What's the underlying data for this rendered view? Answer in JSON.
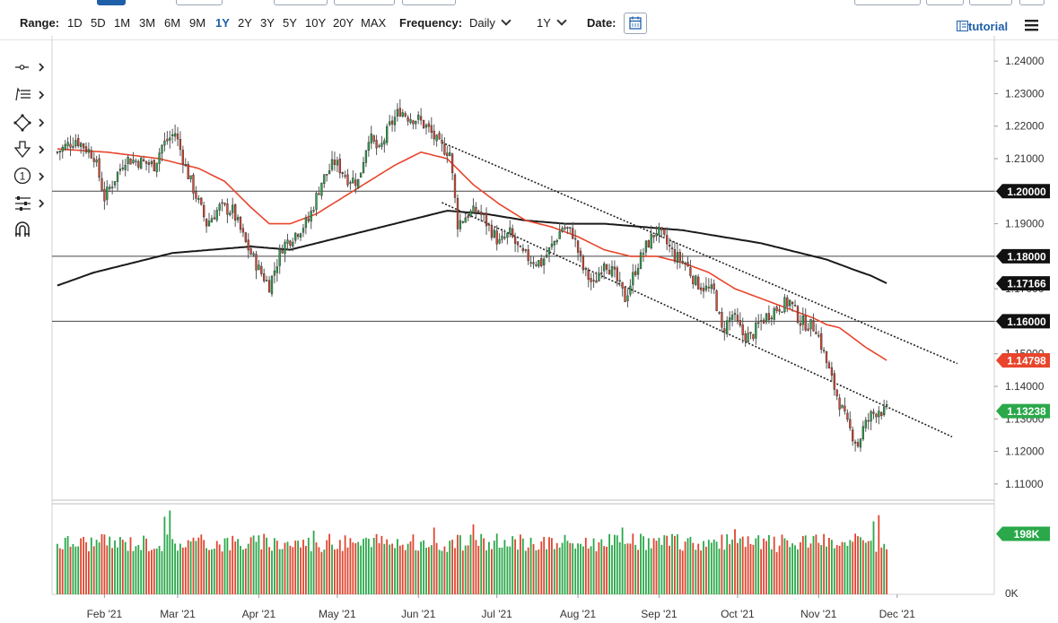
{
  "toolbar": {
    "range_label": "Range:",
    "ranges": [
      "1D",
      "5D",
      "1M",
      "3M",
      "6M",
      "9M",
      "1Y",
      "2Y",
      "3Y",
      "5Y",
      "10Y",
      "20Y",
      "MAX"
    ],
    "selected_range": "1Y",
    "frequency_label": "Frequency:",
    "frequency_value": "Daily",
    "period_value": "1Y",
    "date_label": "Date:",
    "tutorial_label": "tutorial"
  },
  "drawing_tools": [
    "crosshair-icon",
    "indicator-list-icon",
    "shape-icon",
    "arrow-down-icon",
    "annotation-icon",
    "settings-sliders-icon",
    "magnet-icon"
  ],
  "drawing_tool_labels": {
    "annotation": "1"
  },
  "chart_data": {
    "type": "candlestick",
    "instrument_colors": {
      "up": "#2aa84a",
      "down": "#e0452f",
      "ma_fast": "#e8452c",
      "ma_slow": "#1a1a1a"
    },
    "price_axis": {
      "range": [
        1.105,
        1.245
      ],
      "ticks": [
        "1.24000",
        "1.23000",
        "1.22000",
        "1.21000",
        "1.20000",
        "1.19000",
        "1.18000",
        "1.17000",
        "1.16000",
        "1.15000",
        "1.14000",
        "1.13000",
        "1.12000",
        "1.11000"
      ]
    },
    "x_axis": {
      "labels": [
        "Feb '21",
        "Mar '21",
        "Apr '21",
        "May '21",
        "Jun '21",
        "Jul '21",
        "Aug '21",
        "Sep '21",
        "Oct '21",
        "Nov '21",
        "Dec '21"
      ],
      "label_days": [
        19,
        47,
        78,
        108,
        139,
        169,
        200,
        231,
        261,
        292,
        322
      ]
    },
    "horizontal_levels": [
      1.2,
      1.18,
      1.16
    ],
    "price_labels": [
      {
        "text": "1.20000",
        "value": 1.2,
        "color": "#111111"
      },
      {
        "text": "1.18000",
        "value": 1.18,
        "color": "#111111"
      },
      {
        "text": "1.17166",
        "value": 1.17166,
        "color": "#111111"
      },
      {
        "text": "1.16000",
        "value": 1.16,
        "color": "#111111"
      },
      {
        "text": "1.14798",
        "value": 1.14798,
        "color": "#e8452c"
      },
      {
        "text": "1.13238",
        "value": 1.13238,
        "color": "#2aa84a"
      }
    ],
    "trendlines": [
      {
        "from": [
          148,
          1.215
        ],
        "to": [
          345,
          1.147
        ]
      },
      {
        "from": [
          148,
          1.1965
        ],
        "to": [
          343,
          1.1245
        ]
      }
    ],
    "price_anchors": [
      [
        1,
        1.212
      ],
      [
        8,
        1.216
      ],
      [
        15,
        1.211
      ],
      [
        19,
        1.198
      ],
      [
        27,
        1.21
      ],
      [
        33,
        1.209
      ],
      [
        38,
        1.208
      ],
      [
        41,
        1.214
      ],
      [
        46,
        1.218
      ],
      [
        51,
        1.205
      ],
      [
        58,
        1.19
      ],
      [
        63,
        1.195
      ],
      [
        68,
        1.194
      ],
      [
        73,
        1.184
      ],
      [
        78,
        1.176
      ],
      [
        82,
        1.171
      ],
      [
        87,
        1.183
      ],
      [
        92,
        1.187
      ],
      [
        97,
        1.191
      ],
      [
        102,
        1.203
      ],
      [
        107,
        1.209
      ],
      [
        112,
        1.204
      ],
      [
        116,
        1.203
      ],
      [
        120,
        1.217
      ],
      [
        124,
        1.212
      ],
      [
        128,
        1.22
      ],
      [
        132,
        1.225
      ],
      [
        135,
        1.223
      ],
      [
        139,
        1.222
      ],
      [
        143,
        1.219
      ],
      [
        147,
        1.214
      ],
      [
        151,
        1.212
      ],
      [
        154,
        1.19
      ],
      [
        158,
        1.193
      ],
      [
        162,
        1.194
      ],
      [
        166,
        1.189
      ],
      [
        170,
        1.184
      ],
      [
        174,
        1.187
      ],
      [
        178,
        1.181
      ],
      [
        182,
        1.179
      ],
      [
        186,
        1.178
      ],
      [
        190,
        1.183
      ],
      [
        194,
        1.189
      ],
      [
        198,
        1.187
      ],
      [
        202,
        1.176
      ],
      [
        206,
        1.171
      ],
      [
        210,
        1.179
      ],
      [
        214,
        1.174
      ],
      [
        218,
        1.167
      ],
      [
        222,
        1.176
      ],
      [
        226,
        1.183
      ],
      [
        230,
        1.188
      ],
      [
        233,
        1.185
      ],
      [
        237,
        1.18
      ],
      [
        241,
        1.178
      ],
      [
        245,
        1.172
      ],
      [
        249,
        1.17
      ],
      [
        252,
        1.169
      ],
      [
        255,
        1.157
      ],
      [
        259,
        1.162
      ],
      [
        263,
        1.156
      ],
      [
        266,
        1.155
      ],
      [
        270,
        1.16
      ],
      [
        274,
        1.163
      ],
      [
        278,
        1.165
      ],
      [
        281,
        1.166
      ],
      [
        285,
        1.16
      ],
      [
        288,
        1.159
      ],
      [
        291,
        1.158
      ],
      [
        294,
        1.15
      ],
      [
        297,
        1.142
      ],
      [
        300,
        1.135
      ],
      [
        303,
        1.128
      ],
      [
        305,
        1.125
      ],
      [
        307,
        1.122
      ],
      [
        309,
        1.127
      ],
      [
        312,
        1.131
      ],
      [
        315,
        1.133
      ],
      [
        317,
        1.132
      ],
      [
        318,
        1.1324
      ]
    ],
    "ma_fast_anchors": [
      [
        1,
        1.213
      ],
      [
        20,
        1.212
      ],
      [
        40,
        1.21
      ],
      [
        55,
        1.207
      ],
      [
        65,
        1.203
      ],
      [
        75,
        1.195
      ],
      [
        82,
        1.19
      ],
      [
        90,
        1.19
      ],
      [
        100,
        1.193
      ],
      [
        110,
        1.198
      ],
      [
        120,
        1.203
      ],
      [
        130,
        1.208
      ],
      [
        140,
        1.212
      ],
      [
        150,
        1.21
      ],
      [
        160,
        1.202
      ],
      [
        170,
        1.196
      ],
      [
        180,
        1.191
      ],
      [
        190,
        1.189
      ],
      [
        200,
        1.186
      ],
      [
        210,
        1.182
      ],
      [
        220,
        1.18
      ],
      [
        230,
        1.18
      ],
      [
        240,
        1.178
      ],
      [
        250,
        1.175
      ],
      [
        260,
        1.17
      ],
      [
        270,
        1.167
      ],
      [
        280,
        1.164
      ],
      [
        290,
        1.161
      ],
      [
        295,
        1.159
      ],
      [
        300,
        1.158
      ],
      [
        305,
        1.155
      ],
      [
        310,
        1.152
      ],
      [
        318,
        1.148
      ]
    ],
    "ma_slow_anchors": [
      [
        1,
        1.171
      ],
      [
        15,
        1.175
      ],
      [
        30,
        1.178
      ],
      [
        45,
        1.181
      ],
      [
        60,
        1.182
      ],
      [
        75,
        1.183
      ],
      [
        90,
        1.182
      ],
      [
        105,
        1.185
      ],
      [
        120,
        1.188
      ],
      [
        135,
        1.191
      ],
      [
        150,
        1.194
      ],
      [
        165,
        1.193
      ],
      [
        180,
        1.191
      ],
      [
        195,
        1.19
      ],
      [
        210,
        1.19
      ],
      [
        225,
        1.189
      ],
      [
        240,
        1.188
      ],
      [
        255,
        1.186
      ],
      [
        270,
        1.184
      ],
      [
        285,
        1.181
      ],
      [
        295,
        1.179
      ],
      [
        305,
        1.176
      ],
      [
        312,
        1.174
      ],
      [
        318,
        1.1717
      ]
    ],
    "volume": {
      "axis_labels": [
        "0K"
      ],
      "current_label": "198K",
      "max": 280,
      "typical": 170,
      "spikes": [
        [
          42,
          250
        ],
        [
          44,
          270
        ],
        [
          99,
          205
        ],
        [
          145,
          215
        ],
        [
          160,
          225
        ],
        [
          217,
          215
        ],
        [
          260,
          210
        ],
        [
          313,
          235
        ],
        [
          315,
          255
        ]
      ]
    },
    "days": 319
  }
}
